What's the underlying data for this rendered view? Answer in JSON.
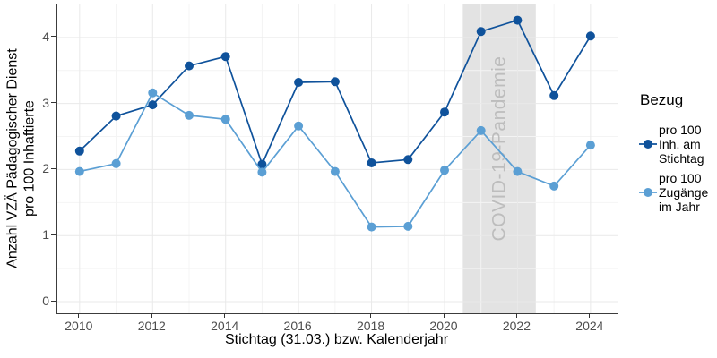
{
  "figure": {
    "y_axis_title": {
      "line1": "Anzahl VZÄ Pädagogischer Dienst",
      "line2": "pro 100 Inhaftierte"
    },
    "x_axis_title": "Stichtag (31.03.) bzw. Kalenderjahr",
    "legend": {
      "title": "Bezug",
      "entries": [
        {
          "lines": [
            "pro 100",
            "Inh. am",
            "Stichtag"
          ],
          "color": "#0f529b"
        },
        {
          "lines": [
            "pro 100",
            "Zugänge",
            "im Jahr"
          ],
          "color": "#5b9fd4"
        }
      ]
    }
  },
  "chart_data": {
    "type": "line",
    "title": "",
    "xlabel": "Stichtag (31.03.) bzw. Kalenderjahr",
    "ylabel": "Anzahl VZÄ Pädagogischer Dienst pro 100 Inhaftierte",
    "x": [
      2010,
      2011,
      2012,
      2013,
      2014,
      2015,
      2016,
      2017,
      2018,
      2019,
      2020,
      2021,
      2022,
      2023,
      2024
    ],
    "series": [
      {
        "name": "pro 100 Inh. am Stichtag",
        "color": "#0f529b",
        "values": [
          2.28,
          2.81,
          2.98,
          3.57,
          3.71,
          2.08,
          3.32,
          3.33,
          2.1,
          2.15,
          2.87,
          4.09,
          4.26,
          3.12,
          4.02
        ]
      },
      {
        "name": "pro 100 Zugänge im Jahr",
        "color": "#5b9fd4",
        "values": [
          1.97,
          2.09,
          3.16,
          2.82,
          2.76,
          1.96,
          2.66,
          1.97,
          1.13,
          1.14,
          1.99,
          2.59,
          1.97,
          1.75,
          2.37
        ]
      }
    ],
    "x_ticks": [
      2010,
      2012,
      2014,
      2016,
      2018,
      2020,
      2022,
      2024
    ],
    "x_minor_ticks": [
      2011,
      2013,
      2015,
      2017,
      2019,
      2021,
      2023
    ],
    "y_ticks": [
      0,
      1,
      2,
      3,
      4
    ],
    "y_minor_ticks": [
      0.5,
      1.5,
      2.5,
      3.5
    ],
    "xlim": [
      2009.39,
      2024.74
    ],
    "ylim": [
      -0.176,
      4.499
    ],
    "grid": "on",
    "legend_position": "right",
    "annotation": {
      "label": "COVID-19-Pandemie",
      "x_start": 2020.5,
      "x_end": 2022.5,
      "band_color": "#e3e3e3",
      "text_color": "#bdbdbd"
    }
  }
}
